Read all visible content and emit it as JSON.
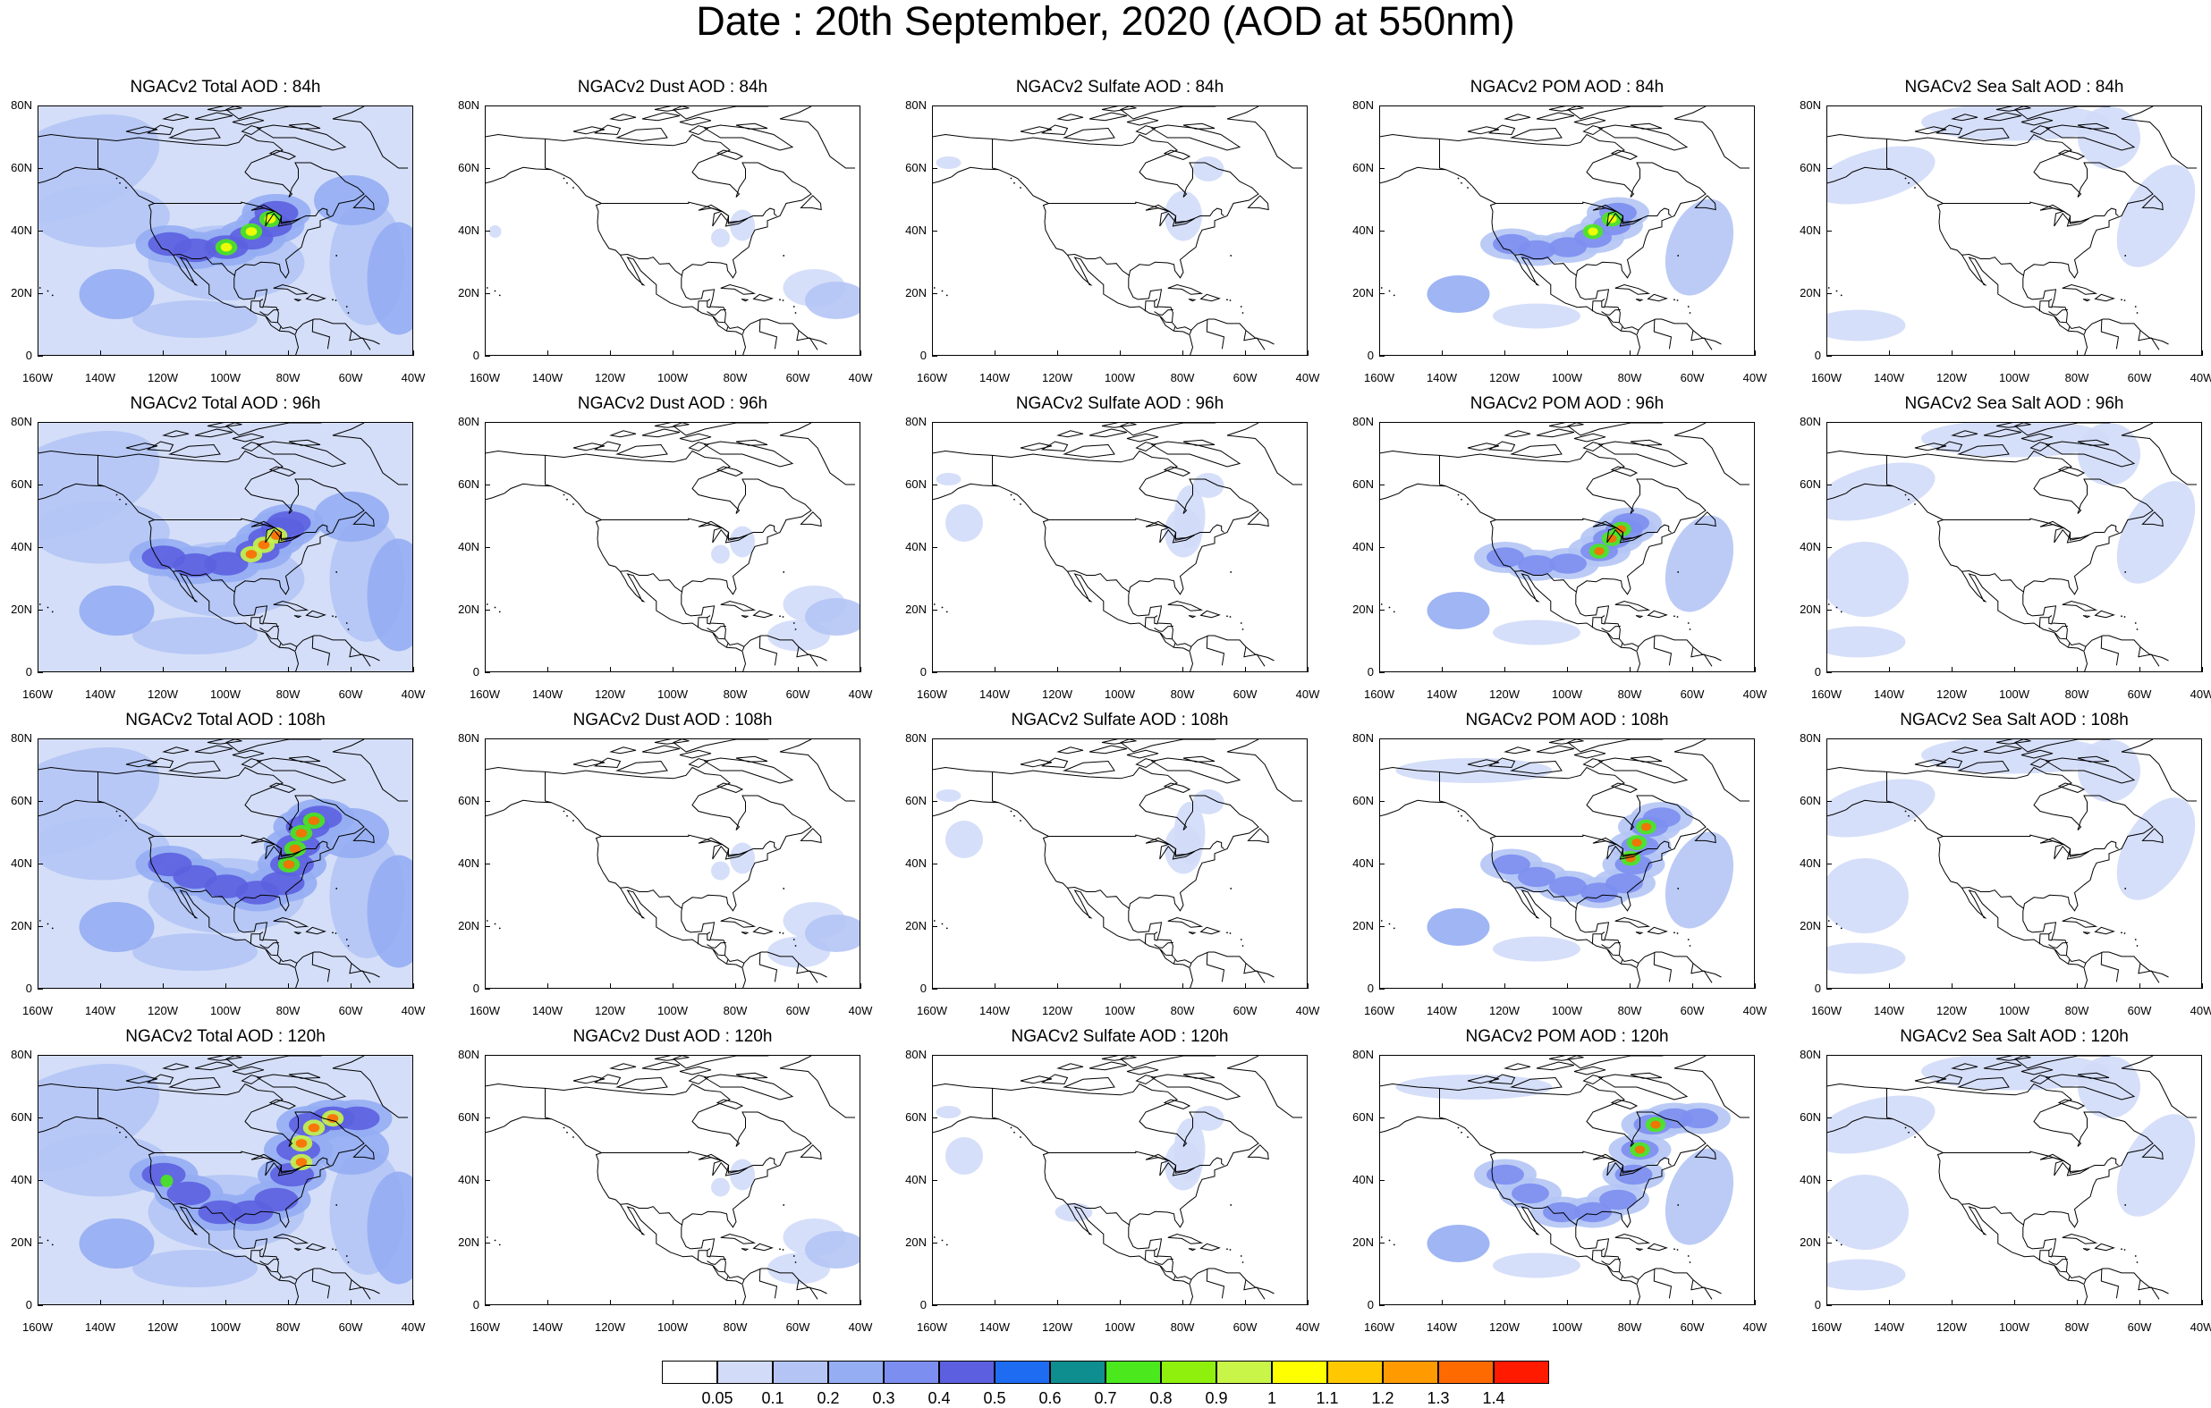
{
  "title": "Date : 20th September, 2020 (AOD at 550nm)",
  "species": [
    {
      "key": "total",
      "titles": [
        "NGACv2 Total AOD : 84h",
        "NGACv2 Total AOD : 96h",
        "NGACv2 Total AOD : 108h",
        "NGACv2 Total AOD : 120h"
      ]
    },
    {
      "key": "dust",
      "titles": [
        "NGACv2 Dust AOD : 84h",
        "NGACv2 Dust AOD : 96h",
        "NGACv2 Dust AOD : 108h",
        "NGACv2 Dust AOD : 120h"
      ]
    },
    {
      "key": "sulfate",
      "titles": [
        "NGACv2 Sulfate AOD : 84h",
        "NGACv2 Sulfate AOD : 96h",
        "NGACv2 Sulfate AOD : 108h",
        "NGACv2 Sulfate AOD : 120h"
      ]
    },
    {
      "key": "pom",
      "titles": [
        "NGACv2 POM AOD : 84h",
        "NGACv2 POM AOD : 96h",
        "NGACv2 POM AOD : 108h",
        "NGACv2 POM AOD : 120h"
      ]
    },
    {
      "key": "seasalt",
      "titles": [
        "NGACv2 Sea Salt AOD : 84h",
        "NGACv2 Sea Salt AOD : 96h",
        "NGACv2 Sea Salt  AOD : 108h",
        "NGACv2 Sea Salt  AOD : 120h"
      ]
    }
  ],
  "lat_labels": [
    "80N",
    "60N",
    "40N",
    "20N",
    "0"
  ],
  "lon_labels": [
    "160W",
    "140W",
    "120W",
    "100W",
    "80W",
    "60W",
    "40W"
  ],
  "colorbar": {
    "labels": [
      "0.05",
      "0.1",
      "0.2",
      "0.3",
      "0.4",
      "0.5",
      "0.6",
      "0.7",
      "0.8",
      "0.9",
      "1",
      "1.1",
      "1.2",
      "1.3",
      "1.4"
    ],
    "colors": [
      "#ffffff",
      "#d2dcf8",
      "#b4c5f5",
      "#95adf3",
      "#7c8ef0",
      "#5c60e0",
      "#1d6cf2",
      "#0e8e8e",
      "#4ae81c",
      "#8ff00e",
      "#c9f548",
      "#ffff00",
      "#ffc800",
      "#ff9a00",
      "#ff6a00",
      "#ff1a00"
    ]
  }
}
